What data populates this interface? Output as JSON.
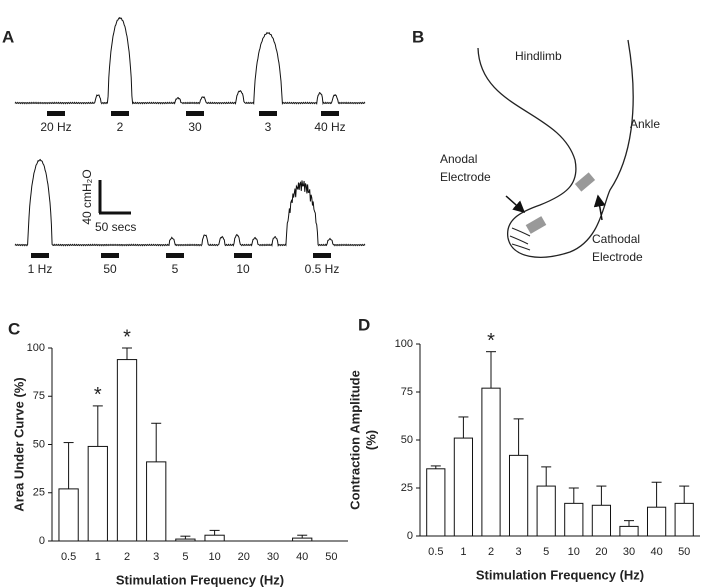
{
  "panels": {
    "a": {
      "label": "A",
      "top_stimuli": [
        "20 Hz",
        "2",
        "30",
        "3",
        "40 Hz"
      ],
      "bottom_stimuli": [
        "1 Hz",
        "50",
        "5",
        "10",
        "0.5 Hz"
      ],
      "scale_y": "40 cmH₂O",
      "scale_x": "50 secs"
    },
    "b": {
      "label": "B",
      "hindlimb": "Hindlimb",
      "ankle": "Ankle",
      "anodal": [
        "Anodal",
        "Electrode"
      ],
      "cathodal": [
        "Cathodal",
        "Electrode"
      ]
    }
  },
  "chart_data": [
    {
      "type": "bar",
      "label": "C",
      "ylabel": [
        "Area Under Curve (%)"
      ],
      "xlabel": "Stimulation Frequency (Hz)",
      "categories": [
        "0.5",
        "1",
        "2",
        "3",
        "5",
        "10",
        "20",
        "30",
        "40",
        "50"
      ],
      "values": [
        27,
        49,
        94,
        41,
        1,
        3,
        0,
        0,
        1.5,
        0
      ],
      "errors": [
        24,
        21,
        6,
        20,
        1.5,
        2.5,
        0,
        0,
        1.5,
        0
      ],
      "significance": [
        null,
        "*",
        "*",
        null,
        null,
        null,
        null,
        null,
        null,
        null
      ],
      "color": "#ffffff",
      "ylim": [
        0,
        100
      ],
      "yticks": [
        0,
        25,
        50,
        75,
        100
      ]
    },
    {
      "type": "bar",
      "label": "D",
      "ylabel": [
        "Contraction Amplitude",
        "(%)"
      ],
      "xlabel": "Stimulation Frequency (Hz)",
      "categories": [
        "0.5",
        "1",
        "2",
        "3",
        "5",
        "10",
        "20",
        "30",
        "40",
        "50"
      ],
      "values": [
        35,
        51,
        77,
        42,
        26,
        17,
        16,
        5,
        15,
        17
      ],
      "errors": [
        1.5,
        11,
        19,
        19,
        10,
        8,
        10,
        3,
        13,
        9
      ],
      "significance": [
        null,
        null,
        "*",
        null,
        null,
        null,
        null,
        null,
        null,
        null
      ],
      "color": "#ffffff",
      "ylim": [
        0,
        100
      ],
      "yticks": [
        0,
        25,
        50,
        75,
        100
      ]
    }
  ]
}
